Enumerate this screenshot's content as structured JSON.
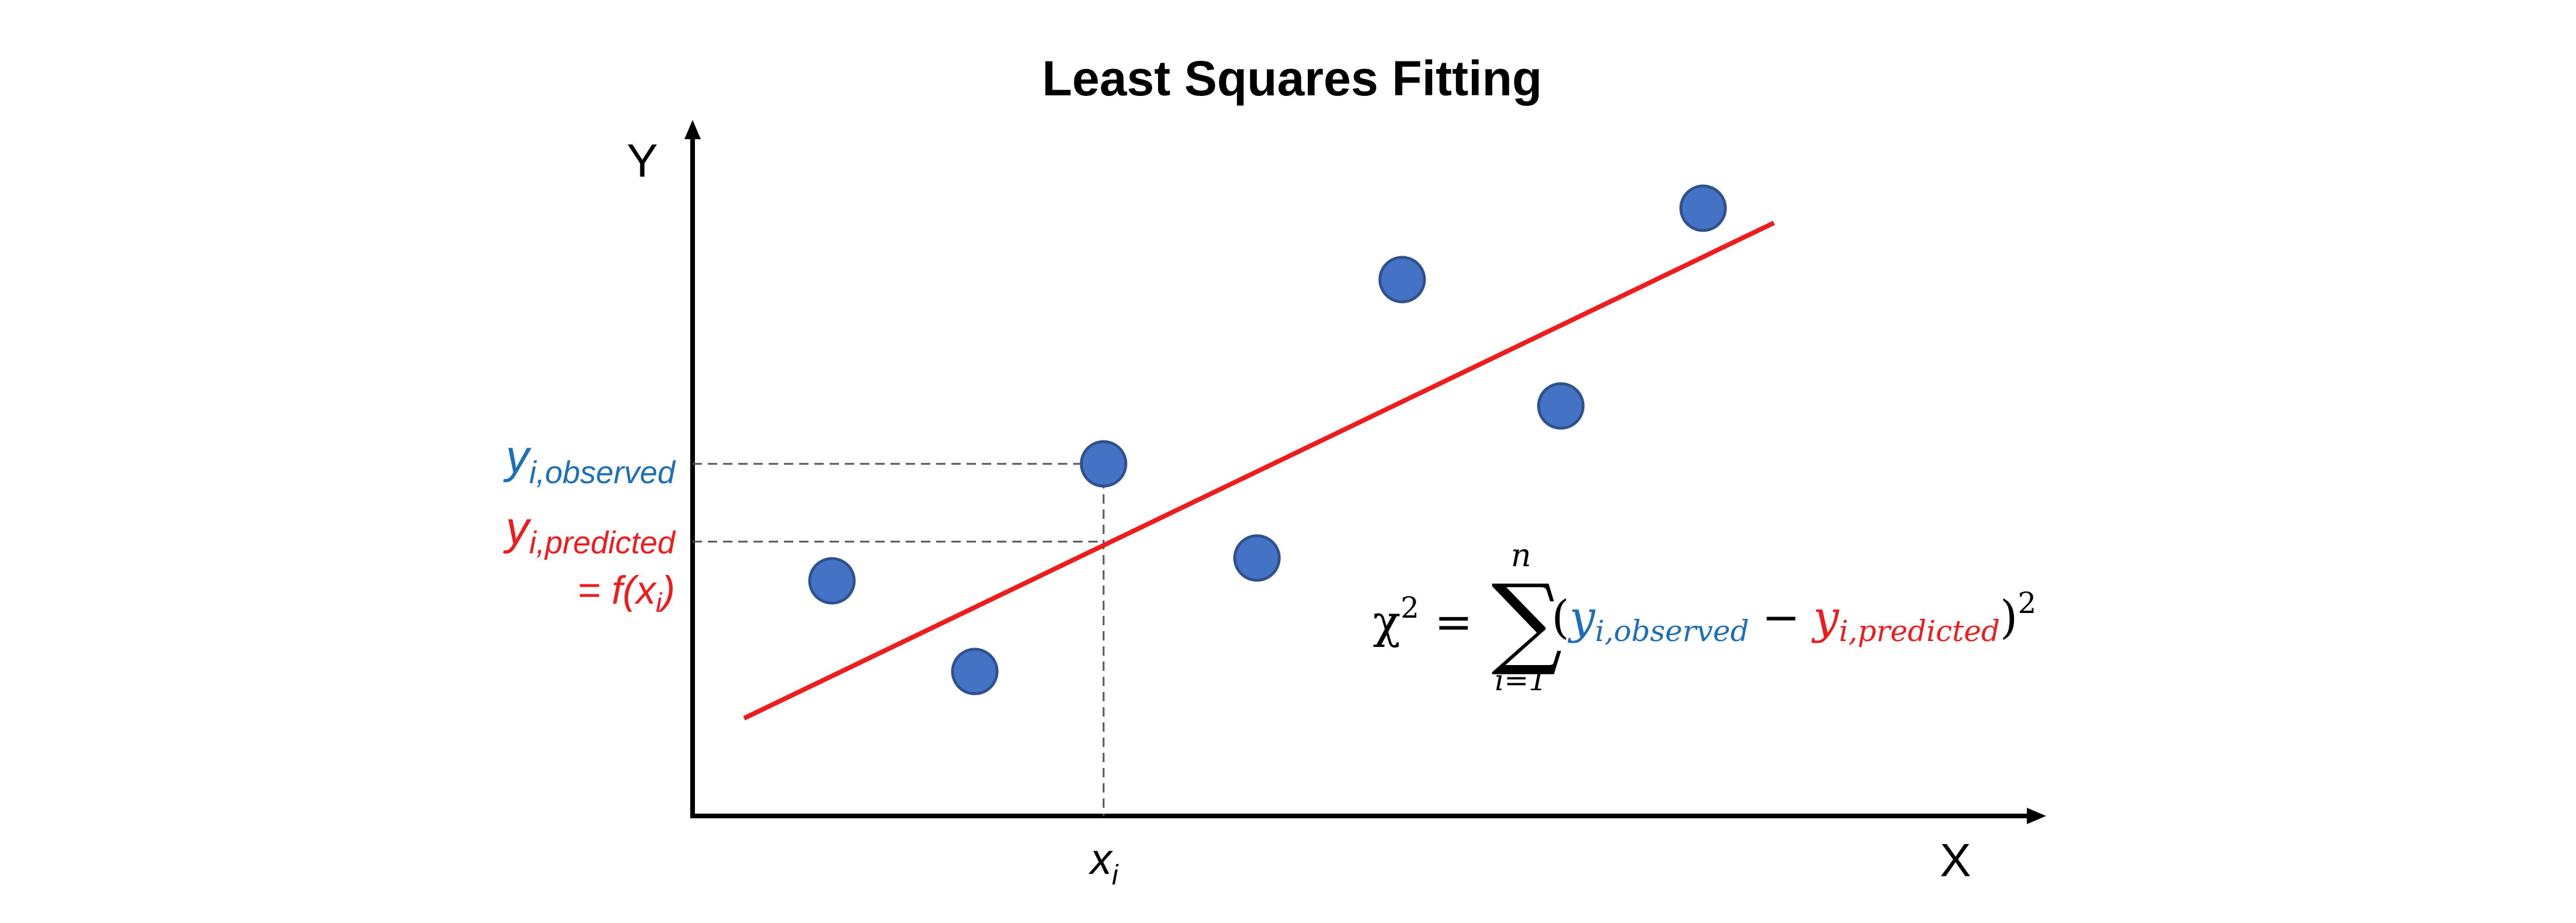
{
  "title": "Least Squares Fitting",
  "axes": {
    "y_label": "Y",
    "x_label": "X"
  },
  "annotations": {
    "x_i": {
      "base": "x",
      "sub": "i"
    },
    "y_observed": {
      "base": "y",
      "sub": "i,observed"
    },
    "y_predicted": {
      "base": "y",
      "sub": "i,predicted"
    },
    "f_of_x": {
      "prefix": "= f(x",
      "sub": "i",
      "suffix": ")"
    }
  },
  "formula": {
    "chi": "χ",
    "sq": "2",
    "eq": "=",
    "sigma": "∑",
    "upper": "n",
    "lower": "i=1",
    "open": "(",
    "y1_base": "y",
    "y1_sub": "i,observed",
    "minus": "−",
    "y2_base": "y",
    "y2_sub": "i,predicted",
    "close": ")",
    "pow": "2"
  },
  "colors": {
    "observed": "#1f6fb8",
    "predicted": "#ee1c1c",
    "point_fill": "#4472c4",
    "point_stroke": "#2f528f",
    "axis": "#000000",
    "guide": "#555555"
  }
}
